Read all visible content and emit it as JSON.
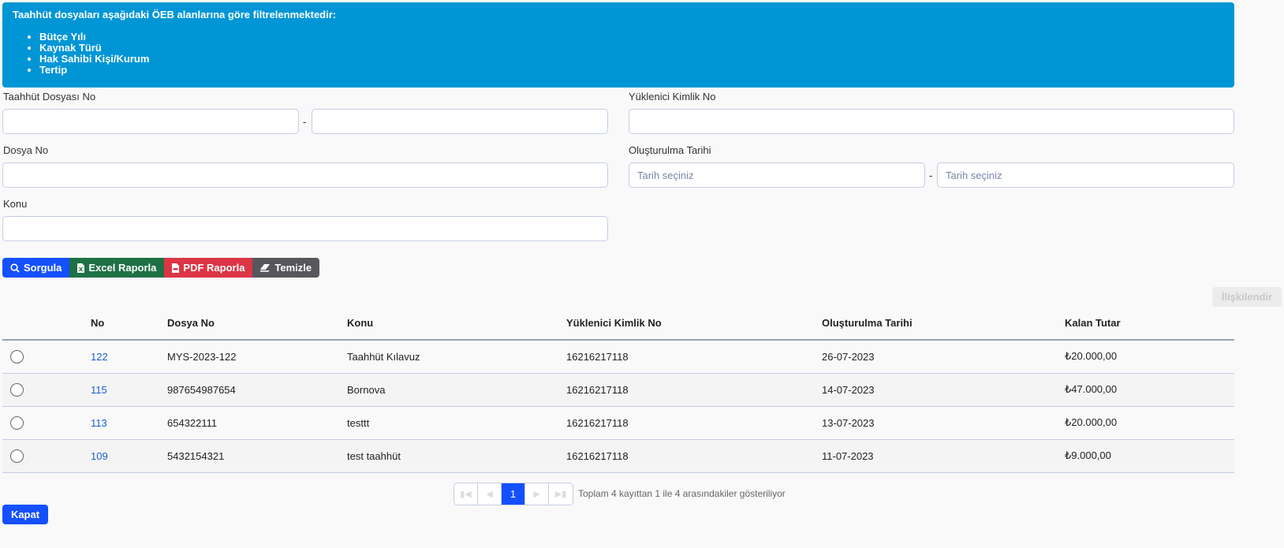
{
  "colors": {
    "banner": "#0096d6",
    "primary": "#1450ff",
    "excel": "#1e7145",
    "pdf": "#dc3545",
    "clear": "#56575c"
  },
  "banner": {
    "title": "Taahhüt dosyaları aşağıdaki ÖEB alanlarına göre filtrelenmektedir:",
    "items": [
      "Bütçe Yılı",
      "Kaynak Türü",
      "Hak Sahibi Kişi/Kurum",
      "Tertip"
    ]
  },
  "form": {
    "taahhut_no_label": "Taahhüt Dosyası No",
    "yuklenici_label": "Yüklenici Kimlik No",
    "dosya_no_label": "Dosya No",
    "tarih_label": "Oluşturulma Tarihi",
    "tarih_placeholder": "Tarih seçiniz",
    "konu_label": "Konu",
    "range_sep": "-"
  },
  "buttons": {
    "sorgula": "Sorgula",
    "excel": "Excel Raporla",
    "pdf": "PDF Raporla",
    "temizle": "Temizle",
    "iliskilendir": "İlişkilendir",
    "kapat": "Kapat"
  },
  "icons": {
    "sorgula": "search-icon",
    "excel": "file-excel-icon",
    "pdf": "file-pdf-icon",
    "temizle": "eraser-icon"
  },
  "table": {
    "headers": [
      "No",
      "Dosya No",
      "Konu",
      "Yüklenici Kimlik No",
      "Oluşturulma Tarihi",
      "Kalan Tutar"
    ],
    "rows": [
      [
        "122",
        "MYS-2023-122",
        "Taahhüt Kılavuz",
        "16216217118",
        "26-07-2023",
        "₺20.000,00"
      ],
      [
        "115",
        "987654987654",
        "Bornova",
        "16216217118",
        "14-07-2023",
        "₺47.000,00"
      ],
      [
        "113",
        "654322111",
        "testtt",
        "16216217118",
        "13-07-2023",
        "₺20.000,00"
      ],
      [
        "109",
        "5432154321",
        "test taahhüt",
        "16216217118",
        "11-07-2023",
        "₺9.000,00"
      ]
    ]
  },
  "pagination": {
    "current": "1",
    "info": "Toplam 4 kayıttan 1 ile 4 arasındakiler gösteriliyor"
  }
}
